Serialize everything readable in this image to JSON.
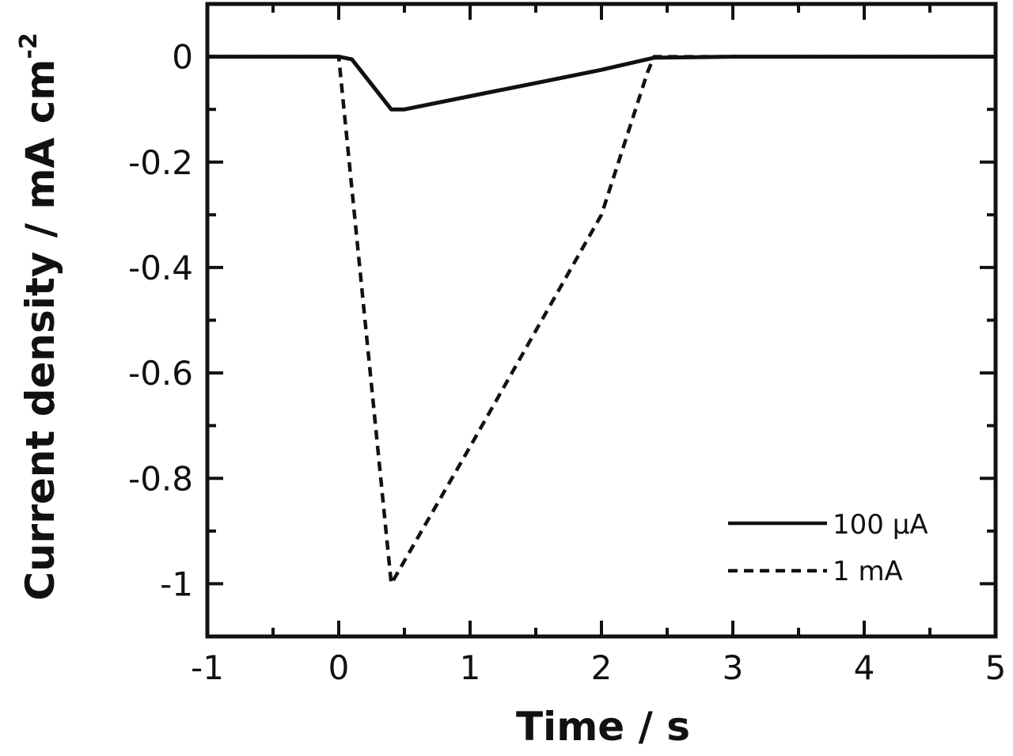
{
  "chart_data": {
    "type": "line",
    "title": "",
    "xlabel": "Time / s",
    "ylabel": "Current density / mA cm",
    "ylabel_superscript": "-2",
    "xlim": [
      -1,
      5
    ],
    "ylim": [
      -1.1,
      0.1
    ],
    "x_ticks": [
      -1,
      0,
      1,
      2,
      3,
      4,
      5
    ],
    "x_tick_labels": [
      "-1",
      "0",
      "1",
      "2",
      "3",
      "4",
      "5"
    ],
    "y_ticks": [
      0,
      -0.2,
      -0.4,
      -0.6,
      -0.8,
      -1
    ],
    "y_tick_labels": [
      "0",
      "-0.2",
      "-0.4",
      "-0.6",
      "-0.8",
      "-1"
    ],
    "grid": false,
    "legend_position": "bottom-right",
    "series": [
      {
        "name": "100 µA",
        "style": "solid",
        "x": [
          -1,
          0,
          0.1,
          0.4,
          0.5,
          1.0,
          1.5,
          2.0,
          2.4,
          3,
          4,
          5
        ],
        "y": [
          0,
          0,
          -0.005,
          -0.1,
          -0.1,
          -0.075,
          -0.05,
          -0.025,
          -0.002,
          0,
          0,
          0
        ]
      },
      {
        "name": "1 mA",
        "style": "dashed",
        "x": [
          -1,
          0,
          0.4,
          1.0,
          1.5,
          2.0,
          2.35,
          2.4,
          3,
          4,
          5
        ],
        "y": [
          0,
          0,
          -1.0,
          -0.74,
          -0.52,
          -0.3,
          -0.03,
          0,
          0,
          0,
          0
        ]
      }
    ]
  }
}
